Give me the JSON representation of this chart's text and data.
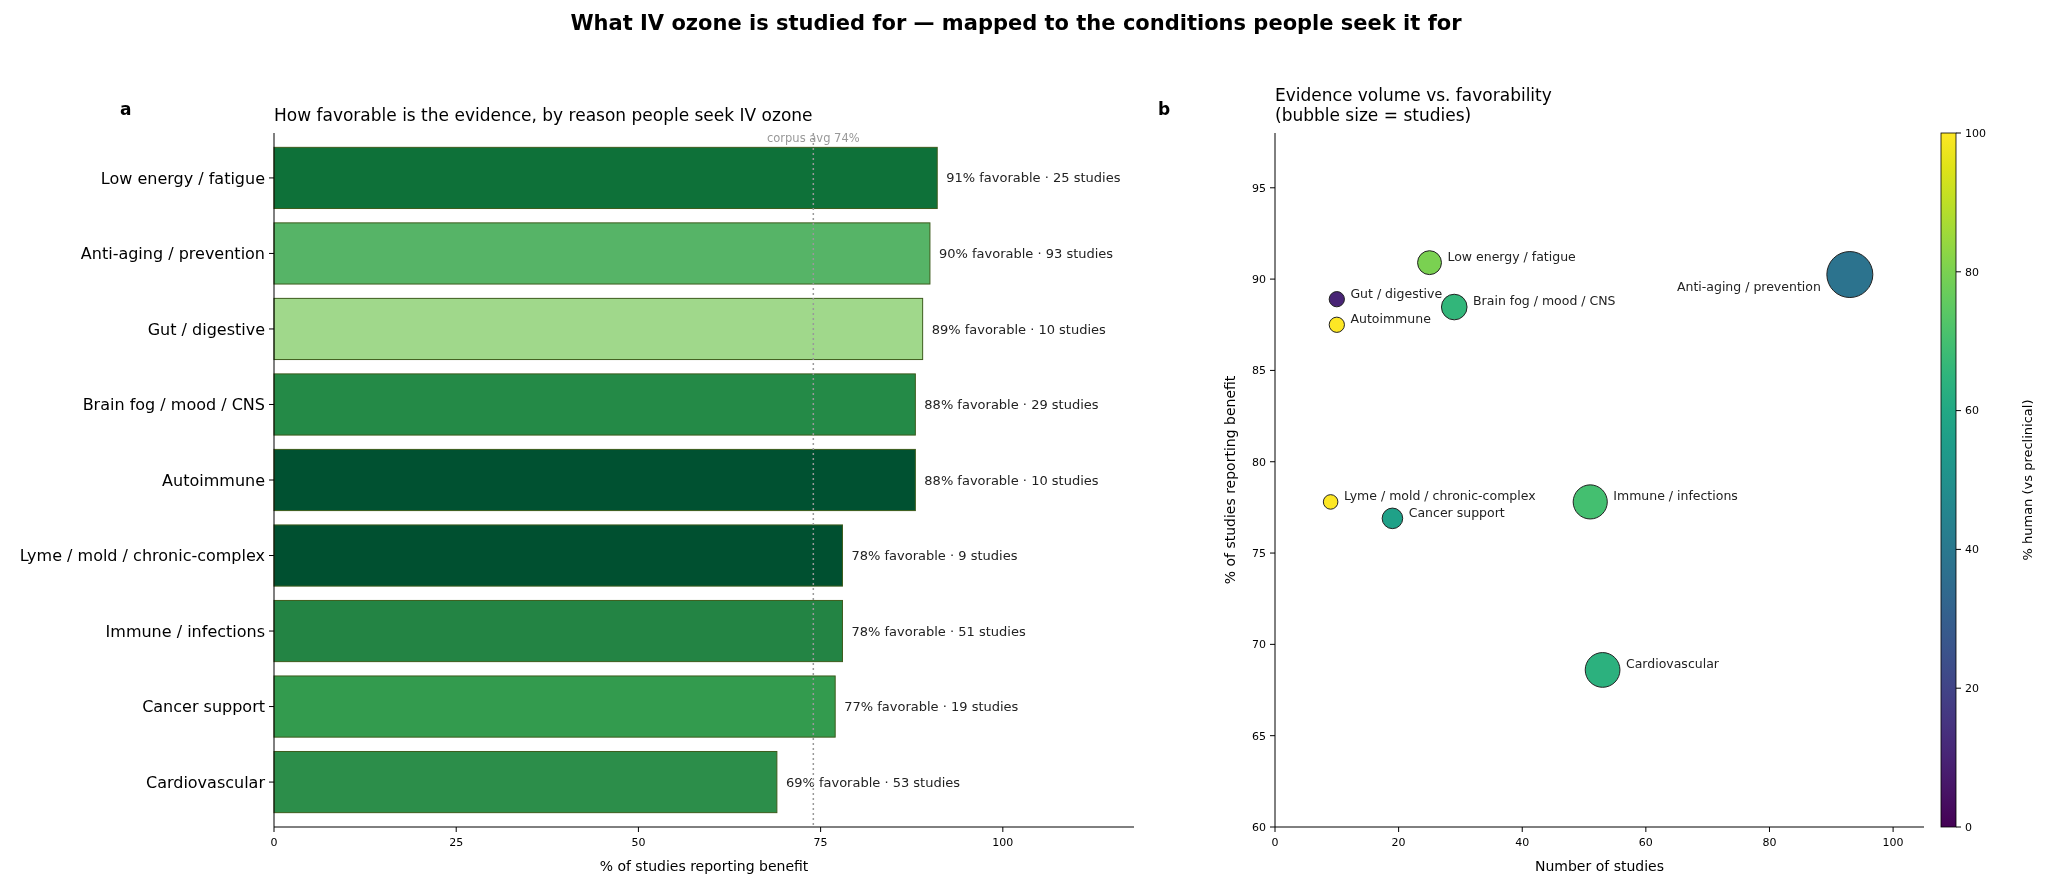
{
  "chart_data": [
    {
      "type": "bar",
      "orientation": "horizontal",
      "title": "How favorable is the evidence, by reason people seek IV ozone",
      "xlabel": "% of studies reporting benefit",
      "annotations": [
        "What IV ozone is studied for — mapped to the conditions people seek it for",
        "a"
      ],
      "categories": [
        "Low energy / fatigue",
        "Anti-aging / prevention",
        "Gut / digestive",
        "Brain fog / mood / CNS",
        "Autoimmune",
        "Lyme / mold / chronic-complex",
        "Immune / infections",
        "Cancer support",
        "Cardiovascular"
      ],
      "values": [
        91,
        90,
        89,
        88,
        88,
        78,
        78,
        77,
        69
      ],
      "colors": [
        "#0e7139",
        "#56b467",
        "#a0d88b",
        "#248a47",
        "#005131",
        "#005030",
        "#238444",
        "#339b4e",
        "#2c8e4a"
      ],
      "value_labels": [
        "91% favorable  ·  25 studies",
        "90% favorable  ·  93 studies",
        "89% favorable  ·  10 studies",
        "88% favorable  ·  29 studies",
        "88% favorable  ·  10 studies",
        "78% favorable  ·  9 studies",
        "78% favorable  ·  51 studies",
        "77% favorable  ·  19 studies",
        "69% favorable  ·  53 studies"
      ],
      "xlim": [
        0,
        118
      ],
      "xticks": [
        0,
        25,
        50,
        75,
        100
      ],
      "ref_lines": [
        {
          "axis": "x",
          "value": 74,
          "label": "corpus avg 74%",
          "color": "#999999",
          "line_style": "dotted"
        }
      ]
    },
    {
      "type": "bubble",
      "title": "Evidence volume vs. favorability\n(bubble size = studies)",
      "xlabel": "Number of studies",
      "ylabel": "% of studies reporting benefit",
      "clabel": "% human (vs preclinical)",
      "annotations": [
        "b",
        {
          "text": "Low energy / fatigue",
          "x": 25,
          "y": 90.9
        },
        {
          "text": "Anti-aging / prevention",
          "x": 93,
          "y": 90.25
        },
        {
          "text": "Gut / digestive",
          "x": 10,
          "y": 88.9
        },
        {
          "text": "Brain fog / mood / CNS",
          "x": 29,
          "y": 88.47
        },
        {
          "text": "Autoimmune",
          "x": 10,
          "y": 87.5
        },
        {
          "text": "Lyme / mold / chronic-complex",
          "x": 9,
          "y": 77.8
        },
        {
          "text": "Immune / infections",
          "x": 51,
          "y": 77.8
        },
        {
          "text": "Cancer support",
          "x": 19,
          "y": 76.9
        },
        {
          "text": "Cardiovascular",
          "x": 53,
          "y": 68.6
        }
      ],
      "x": [
        25,
        93,
        10,
        29,
        10,
        9,
        51,
        19,
        53
      ],
      "values": [
        90.9,
        90.25,
        88.9,
        88.47,
        87.5,
        77.8,
        77.8,
        76.9,
        68.6
      ],
      "sizes": [
        0.27,
        1,
        0.11,
        0.31,
        0.11,
        0.1,
        0.55,
        0.2,
        0.57
      ],
      "cvalues": [
        80,
        38,
        10,
        66,
        100,
        100,
        70,
        57,
        64
      ],
      "clim": [
        0,
        100
      ],
      "cticks": [
        0,
        20,
        40,
        60,
        80,
        100
      ],
      "xlim": [
        0,
        105
      ],
      "xticks": [
        0,
        20,
        40,
        60,
        80,
        100
      ],
      "ylim": [
        60,
        98
      ],
      "yticks": [
        60,
        65,
        70,
        75,
        80,
        85,
        90,
        95
      ]
    }
  ]
}
